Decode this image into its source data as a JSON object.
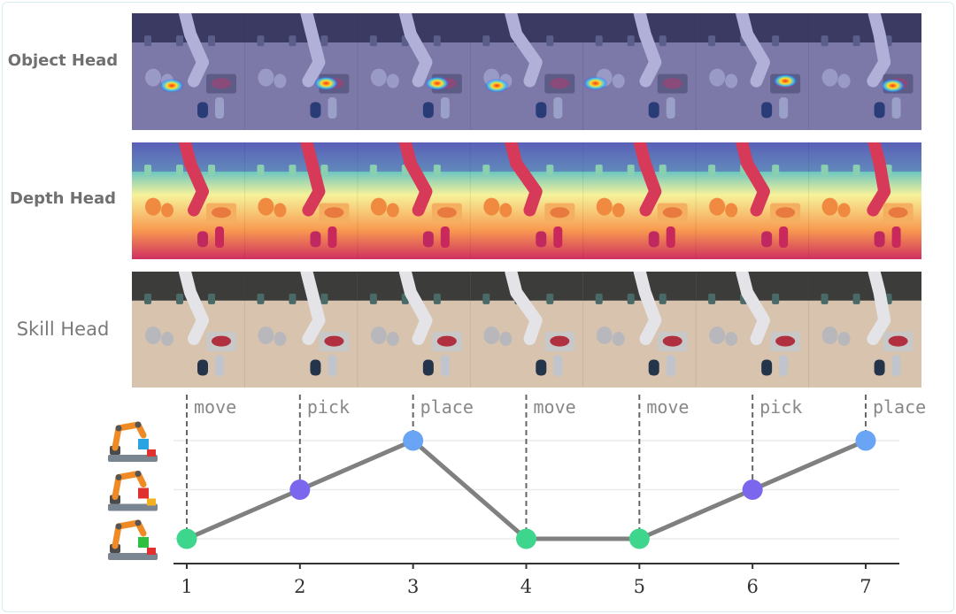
{
  "rows": [
    {
      "label": "Object Head"
    },
    {
      "label": "Depth Head"
    },
    {
      "label": "Skill Head"
    }
  ],
  "chart_data": {
    "type": "line",
    "x": [
      1,
      2,
      3,
      4,
      5,
      6,
      7
    ],
    "y": [
      1,
      2,
      3,
      1,
      1,
      2,
      3
    ],
    "skills": [
      "move",
      "pick",
      "place",
      "move",
      "move",
      "pick",
      "place"
    ],
    "ylim": [
      1,
      3
    ],
    "y_icons": [
      "robot-place-icon",
      "robot-pick-icon",
      "robot-move-icon"
    ],
    "grid": true,
    "colors": {
      "1": "#3dd68c",
      "2": "#7b67ee",
      "3": "#6aa4f4",
      "line": "#808080"
    }
  }
}
